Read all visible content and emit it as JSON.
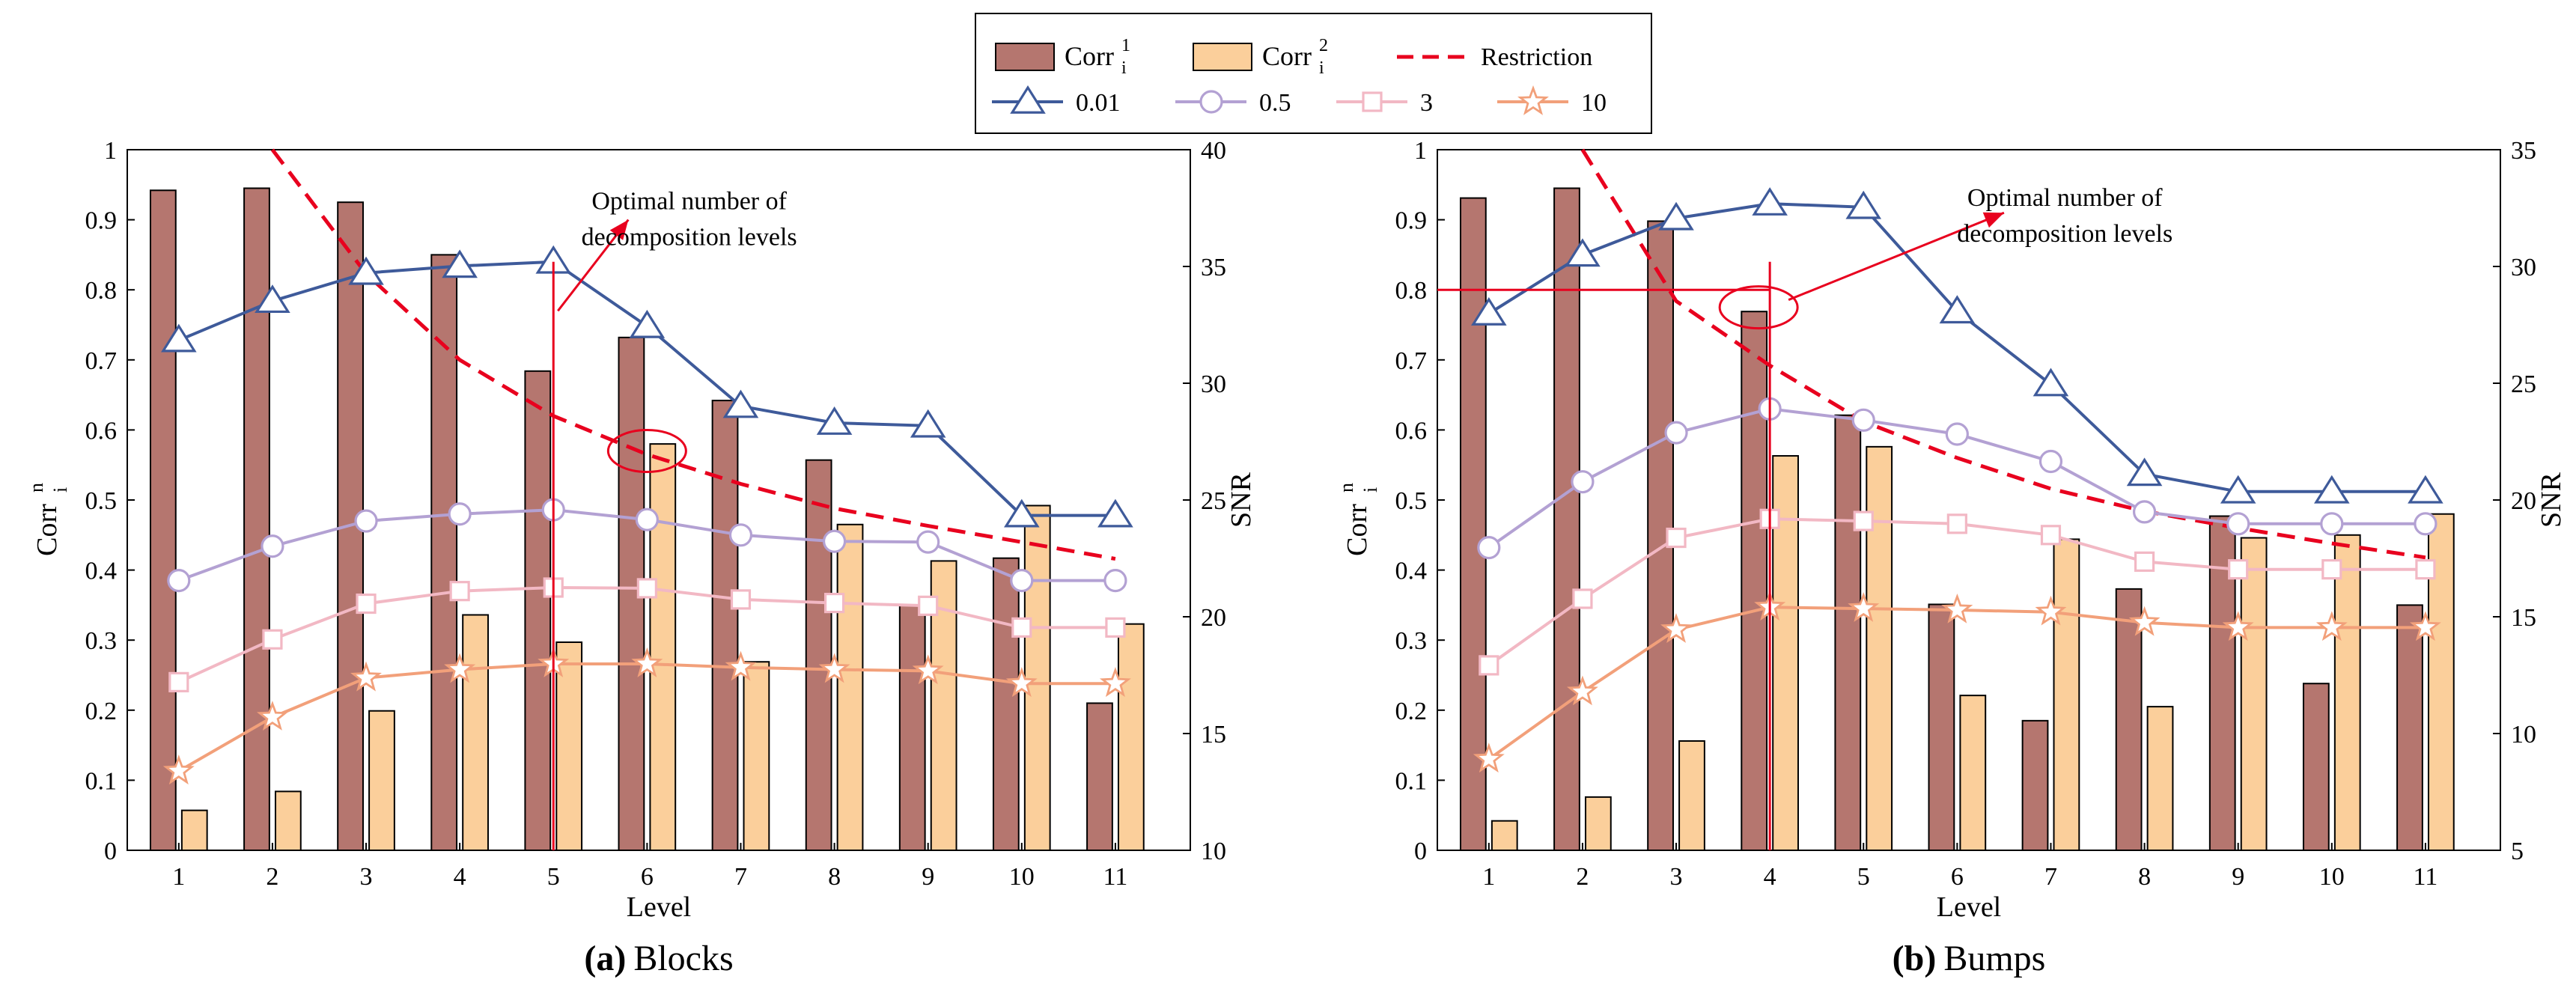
{
  "legend": {
    "bar1_label": "Corr",
    "bar1_sup": "1",
    "bar1_sub": "i",
    "bar2_label": "Corr",
    "bar2_sup": "2",
    "bar2_sub": "i",
    "restriction_label": "Restriction",
    "snr_labels": [
      "0.01",
      "0.5",
      "3",
      "10"
    ]
  },
  "colors": {
    "bar1": "#b5766f",
    "bar2": "#fbcf9b",
    "restriction": "#e8001e",
    "snr": [
      "#3e5a9a",
      "#b3a1d3",
      "#f2b8c4",
      "#f2a07a"
    ],
    "annotation": "#e8001e"
  },
  "chart_data": [
    {
      "type": "bar",
      "panel_letter": "(a)",
      "panel_name": "Blocks",
      "xlabel": "Level",
      "ylabel_left": "Corr",
      "ylabel_left_sup": "n",
      "ylabel_left_sub": "i",
      "ylabel_right": "SNR",
      "categories": [
        1,
        2,
        3,
        4,
        5,
        6,
        7,
        8,
        9,
        10,
        11
      ],
      "ylim": [
        0,
        1
      ],
      "y2lim": [
        10,
        40
      ],
      "yticks": [
        "0",
        "0.1",
        "0.2",
        "0.3",
        "0.4",
        "0.5",
        "0.6",
        "0.7",
        "0.8",
        "0.9",
        "1"
      ],
      "y2ticks": [
        "10",
        "15",
        "20",
        "25",
        "30",
        "35",
        "40"
      ],
      "bars": [
        {
          "name": "Corr_i^1",
          "values": [
            0.942,
            0.945,
            0.925,
            0.85,
            0.684,
            0.732,
            0.642,
            0.557,
            0.35,
            0.417,
            0.21
          ]
        },
        {
          "name": "Corr_i^2",
          "values": [
            0.057,
            0.084,
            0.199,
            0.336,
            0.297,
            0.58,
            0.269,
            0.465,
            0.413,
            0.492,
            0.323
          ]
        }
      ],
      "restriction": {
        "x": [
          2.0,
          3,
          4,
          5,
          6,
          7,
          8,
          9,
          10,
          11
        ],
        "values": [
          1.0,
          0.823,
          0.7,
          0.62,
          0.565,
          0.523,
          0.488,
          0.463,
          0.44,
          0.416
        ]
      },
      "lines": [
        {
          "name": "0.01",
          "values": [
            0.728,
            0.784,
            0.824,
            0.834,
            0.84,
            0.748,
            0.634,
            0.61,
            0.606,
            0.478,
            0.478
          ]
        },
        {
          "name": "0.5",
          "values": [
            0.385,
            0.434,
            0.47,
            0.48,
            0.486,
            0.472,
            0.45,
            0.441,
            0.44,
            0.385,
            0.385
          ]
        },
        {
          "name": "3",
          "values": [
            0.24,
            0.301,
            0.352,
            0.37,
            0.375,
            0.374,
            0.358,
            0.353,
            0.349,
            0.318,
            0.318
          ]
        },
        {
          "name": "10",
          "values": [
            0.113,
            0.19,
            0.246,
            0.258,
            0.266,
            0.266,
            0.261,
            0.258,
            0.256,
            0.238,
            0.238
          ]
        }
      ],
      "annotation": {
        "text_line1": "Optimal number of",
        "text_line2": "decomposition levels",
        "optimal_level": 5,
        "circled_level": 6,
        "circled_value": 0.57
      }
    },
    {
      "type": "bar",
      "panel_letter": "(b)",
      "panel_name": "Bumps",
      "xlabel": "Level",
      "ylabel_left": "Corr",
      "ylabel_left_sup": "n",
      "ylabel_left_sub": "i",
      "ylabel_right": "SNR",
      "categories": [
        1,
        2,
        3,
        4,
        5,
        6,
        7,
        8,
        9,
        10,
        11
      ],
      "ylim": [
        0,
        1
      ],
      "y2lim": [
        5,
        35
      ],
      "yticks": [
        "0",
        "0.1",
        "0.2",
        "0.3",
        "0.4",
        "0.5",
        "0.6",
        "0.7",
        "0.8",
        "0.9",
        "1"
      ],
      "y2ticks": [
        "5",
        "10",
        "15",
        "20",
        "25",
        "30",
        "35"
      ],
      "bars": [
        {
          "name": "Corr_i^1",
          "values": [
            0.931,
            0.945,
            0.898,
            0.769,
            0.621,
            0.351,
            0.185,
            0.373,
            0.477,
            0.238,
            0.35
          ]
        },
        {
          "name": "Corr_i^2",
          "values": [
            0.042,
            0.076,
            0.156,
            0.563,
            0.576,
            0.221,
            0.444,
            0.205,
            0.446,
            0.45,
            0.48
          ]
        }
      ],
      "restriction": {
        "x": [
          2.0,
          3,
          4,
          5,
          6,
          7,
          8,
          9,
          10,
          11
        ],
        "values": [
          1.0,
          0.784,
          0.692,
          0.612,
          0.56,
          0.516,
          0.484,
          0.46,
          0.438,
          0.418
        ]
      },
      "lines": [
        {
          "name": "0.01",
          "values": [
            0.766,
            0.85,
            0.902,
            0.923,
            0.918,
            0.769,
            0.665,
            0.537,
            0.512,
            0.512,
            0.512
          ]
        },
        {
          "name": "0.5",
          "values": [
            0.432,
            0.526,
            0.596,
            0.63,
            0.614,
            0.594,
            0.555,
            0.483,
            0.466,
            0.466,
            0.466
          ]
        },
        {
          "name": "3",
          "values": [
            0.264,
            0.359,
            0.446,
            0.473,
            0.47,
            0.466,
            0.45,
            0.412,
            0.401,
            0.401,
            0.401
          ]
        },
        {
          "name": "10",
          "values": [
            0.13,
            0.226,
            0.315,
            0.347,
            0.345,
            0.343,
            0.34,
            0.325,
            0.318,
            0.318,
            0.318
          ]
        }
      ],
      "annotation": {
        "text_line1": "Optimal number of",
        "text_line2": "decomposition levels",
        "optimal_level": 4,
        "circled_level": 4,
        "circled_value": 0.775,
        "reference_value": 0.8
      }
    }
  ]
}
